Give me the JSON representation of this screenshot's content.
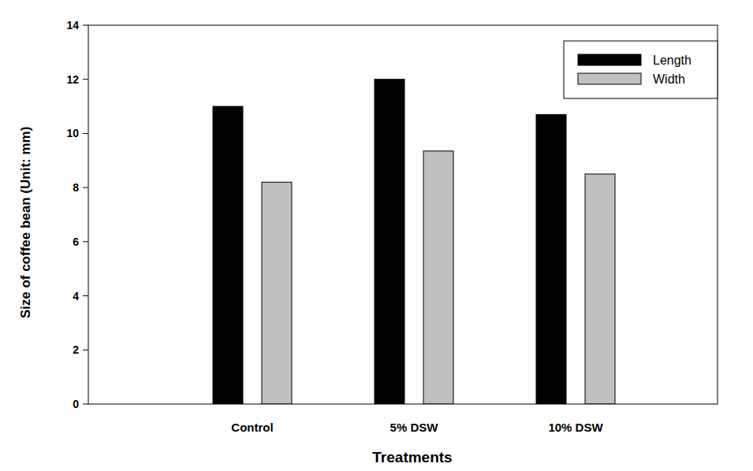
{
  "chart_data": {
    "type": "bar",
    "x_label": "Treatments",
    "y_label": "Size of coffee bean (Unit: mm)",
    "categories": [
      "Control",
      "5% DSW",
      "10% DSW"
    ],
    "series": [
      {
        "name": "Length",
        "color": "#000000",
        "values": [
          11.0,
          12.0,
          10.7
        ]
      },
      {
        "name": "Width",
        "color": "#c0c0c0",
        "values": [
          8.2,
          9.35,
          8.5
        ]
      }
    ],
    "ylim": [
      0,
      14
    ],
    "yticks": [
      0,
      2,
      4,
      6,
      8,
      10,
      12,
      14
    ],
    "legend": "upper right",
    "grid": false
  }
}
